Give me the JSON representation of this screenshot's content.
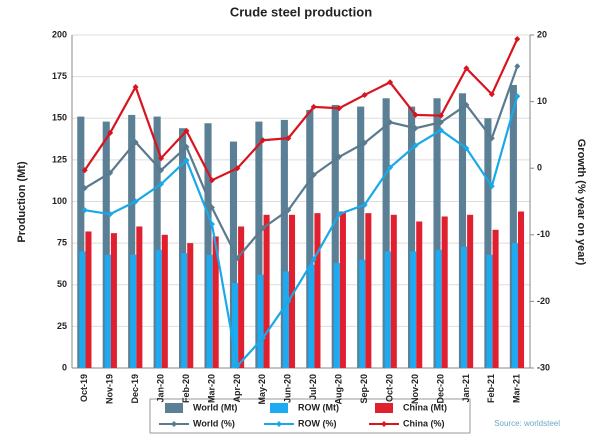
{
  "chart_data": {
    "type": "bar_line",
    "title": "Crude steel production",
    "y_label": "Production (Mt)",
    "y2_label": "Growth (% year on year)",
    "source": "Source: worldsteel",
    "categories": [
      "Oct-19",
      "Nov-19",
      "Dec-19",
      "Jan-20",
      "Feb-20",
      "Mar-20",
      "Apr-20",
      "May-20",
      "Jun-20",
      "Jul-20",
      "Aug-20",
      "Sep-20",
      "Oct-20",
      "Nov-20",
      "Dec-20",
      "Jan-21",
      "Feb-21",
      "Mar-21"
    ],
    "ylim": [
      0,
      200
    ],
    "yticks": [
      0,
      25,
      50,
      75,
      100,
      125,
      150,
      175,
      200
    ],
    "y2lim": [
      -30,
      20
    ],
    "y2ticks": [
      -30,
      -20,
      -10,
      0,
      10,
      20
    ],
    "grid": true,
    "series": [
      {
        "name": "World (Mt)",
        "kind": "bar",
        "color": "#5b7f95",
        "values": [
          151,
          148,
          152,
          151,
          144,
          147,
          136,
          148,
          149,
          155,
          158,
          157,
          162,
          157,
          162,
          165,
          150,
          170
        ]
      },
      {
        "name": "ROW (Mt)",
        "kind": "bar",
        "color": "#1eaaf1",
        "values": [
          70,
          68,
          68,
          71,
          69,
          68,
          51,
          56,
          58,
          62,
          63,
          65,
          70,
          70,
          71,
          73,
          68,
          75
        ]
      },
      {
        "name": "China (Mt)",
        "kind": "bar",
        "color": "#e0202f",
        "values": [
          82,
          81,
          85,
          80,
          75,
          79,
          85,
          92,
          92,
          93,
          94,
          93,
          92,
          88,
          91,
          92,
          83,
          94
        ]
      },
      {
        "name": "World (%)",
        "kind": "line",
        "axis": "y2",
        "color": "#5a7a8e",
        "values": [
          -3,
          -0.7,
          3.9,
          -0.3,
          3.2,
          -5.9,
          -13.5,
          -9,
          -6.3,
          -1,
          1.7,
          3.8,
          6.9,
          6,
          6.9,
          9.5,
          4.5,
          15.3
        ]
      },
      {
        "name": "ROW (%)",
        "kind": "line",
        "axis": "y2",
        "color": "#19a9e8",
        "values": [
          -6.3,
          -6.9,
          -5,
          -2.4,
          1.2,
          -8.4,
          -29.7,
          -25.5,
          -20,
          -13.7,
          -6.9,
          -5.5,
          0.1,
          3.4,
          5.7,
          3,
          -2.7,
          10.8
        ]
      },
      {
        "name": "China (%)",
        "kind": "line",
        "axis": "y2",
        "color": "#d8141f",
        "values": [
          -0.3,
          5.3,
          12.2,
          1.5,
          5.6,
          -1.8,
          0,
          4.2,
          4.5,
          9.2,
          9,
          11,
          12.9,
          8,
          7.9,
          15,
          11.1,
          19.4
        ]
      }
    ]
  }
}
